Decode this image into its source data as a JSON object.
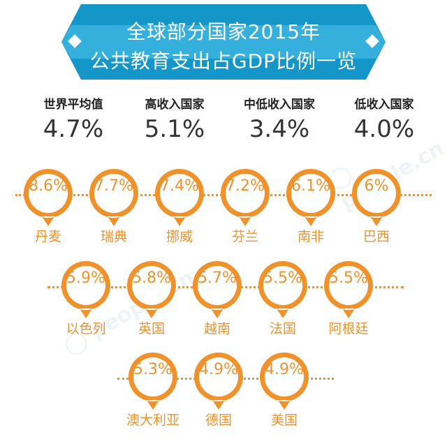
{
  "title": {
    "line1": "全球部分国家2015年",
    "line2": "公共教育支出占GDP比例一览"
  },
  "averages": [
    {
      "label": "世界平均值",
      "value": "4.7%"
    },
    {
      "label": "高收入国家",
      "value": "5.1%"
    },
    {
      "label": "中低收入国家",
      "value": "3.4%"
    },
    {
      "label": "低收入国家",
      "value": "4.0%"
    }
  ],
  "colors": {
    "accent": "#f0922b",
    "banner": "#1596c8",
    "banner_stripe": "#35b0dc"
  },
  "chart_data": {
    "type": "table",
    "title": "全球部分国家2015年公共教育支出占GDP比例一览",
    "categories": [
      "丹麦",
      "瑞典",
      "挪威",
      "芬兰",
      "南非",
      "巴西",
      "以色列",
      "英国",
      "越南",
      "法国",
      "阿根廷",
      "澳大利亚",
      "德国",
      "美国"
    ],
    "values": [
      8.6,
      7.7,
      7.4,
      7.2,
      6.1,
      6,
      5.9,
      5.8,
      5.7,
      5.5,
      5.5,
      5.3,
      4.9,
      4.9
    ],
    "labels": [
      "8.6%",
      "7.7%",
      "7.4%",
      "7.2%",
      "6.1%",
      "6%",
      "5.9%",
      "5.8%",
      "5.7%",
      "5.5%",
      "5.5%",
      "5.3%",
      "4.9%",
      "4.9%"
    ],
    "rows": [
      6,
      5,
      3
    ]
  }
}
